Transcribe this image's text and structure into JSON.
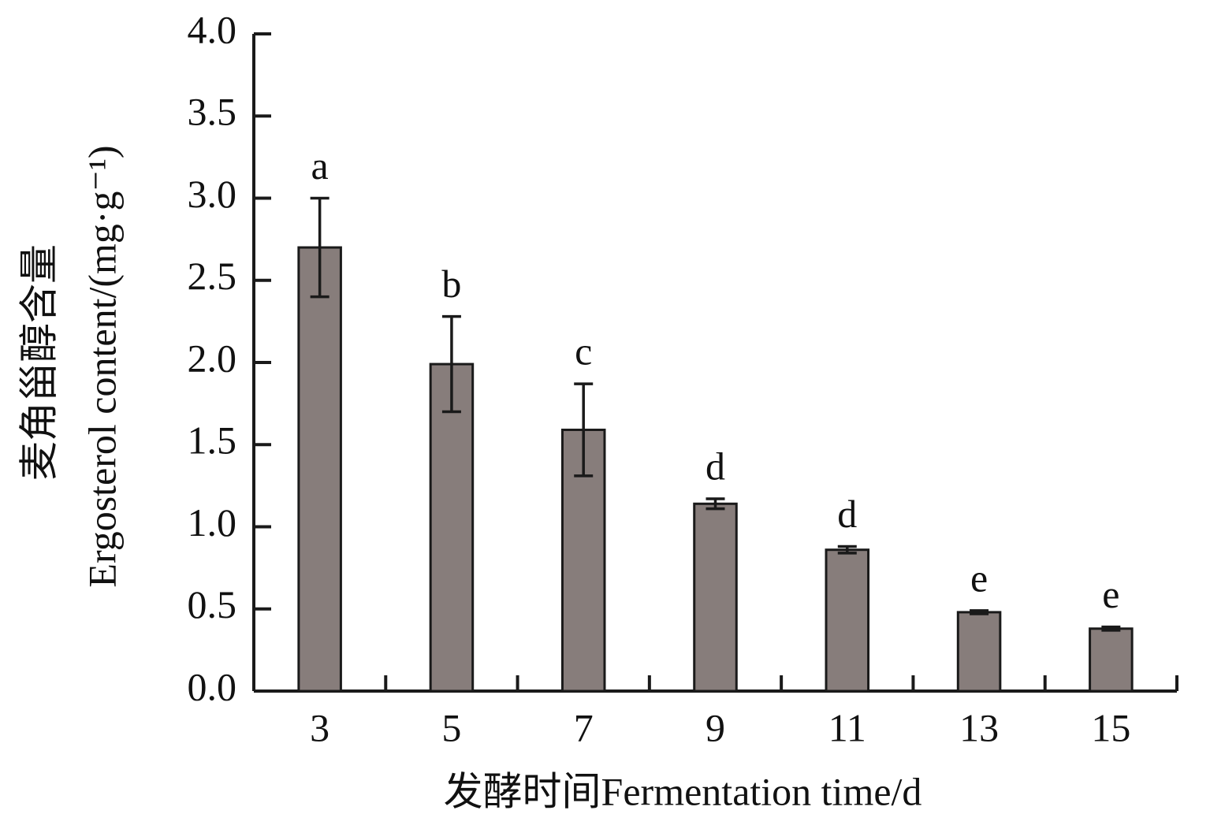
{
  "chart_data": {
    "type": "bar",
    "xlabel": "发酵时间Fermentation time/d",
    "ylabel_cn": "麦角甾醇含量",
    "ylabel": "Ergosterol content/(mg·g⁻¹)",
    "categories": [
      "3",
      "5",
      "7",
      "9",
      "11",
      "13",
      "15"
    ],
    "values": [
      2.7,
      1.99,
      1.59,
      1.14,
      0.86,
      0.48,
      0.38
    ],
    "errors": [
      0.3,
      0.29,
      0.28,
      0.03,
      0.02,
      0.01,
      0.01
    ],
    "significance": [
      "a",
      "b",
      "c",
      "d",
      "d",
      "e",
      "e"
    ],
    "color": "#877d7b",
    "ylim": [
      0,
      4
    ],
    "yticks": [
      {
        "value": 0,
        "label": "0.0"
      },
      0.5,
      {
        "value": 1,
        "label": "1.0"
      },
      1.5,
      {
        "value": 2,
        "label": "2.0"
      },
      2.5,
      {
        "value": 3,
        "label": "3.0"
      },
      3.5,
      {
        "value": 4,
        "label": "4.0"
      }
    ]
  }
}
